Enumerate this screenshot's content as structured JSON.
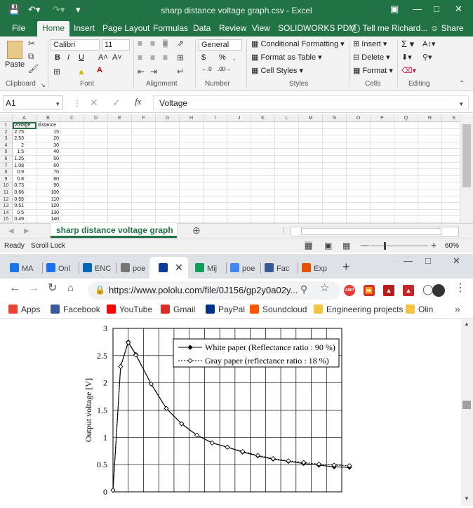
{
  "excel": {
    "window_title": "sharp distance voltage graph.csv - Excel",
    "tabs": [
      "File",
      "Home",
      "Insert",
      "Page Layout",
      "Formulas",
      "Data",
      "Review",
      "View",
      "SOLIDWORKS PDM"
    ],
    "tell_me": "Tell me",
    "user": "Richard...",
    "share": "Share",
    "ribbon": {
      "paste": "Paste",
      "font_name": "Calibri",
      "font_size": "11",
      "number_format": "General",
      "conditional_formatting": "Conditional Formatting",
      "format_as_table": "Format as Table",
      "cell_styles": "Cell Styles",
      "insert": "Insert",
      "delete": "Delete",
      "format": "Format",
      "groups": [
        "Clipboard",
        "Font",
        "Alignment",
        "Number",
        "Styles",
        "Cells",
        "Editing"
      ]
    },
    "name_box": "A1",
    "formula_value": "Voltage",
    "columns": [
      "A",
      "B",
      "C",
      "D",
      "E",
      "F",
      "G",
      "H",
      "I",
      "J",
      "K",
      "L",
      "M",
      "N",
      "O",
      "P",
      "Q",
      "R",
      "S"
    ],
    "rows": [
      [
        "Voltage",
        "distance"
      ],
      [
        "2.75",
        "15"
      ],
      [
        "2.53",
        "20"
      ],
      [
        "2",
        "30"
      ],
      [
        "1.5",
        "40"
      ],
      [
        "1.25",
        "50"
      ],
      [
        "1.08",
        "60"
      ],
      [
        "0.9",
        "70"
      ],
      [
        "0.8",
        "80"
      ],
      [
        "0.73",
        "90"
      ],
      [
        "0.66",
        "100"
      ],
      [
        "0.55",
        "110"
      ],
      [
        "0.51",
        "120"
      ],
      [
        "0.5",
        "130"
      ],
      [
        "0.49",
        "140"
      ]
    ],
    "sheet_tab": "sharp distance voltage graph",
    "status": {
      "ready": "Ready",
      "scroll_lock": "Scroll Lock",
      "zoom": "60%"
    }
  },
  "chrome": {
    "tabs": [
      {
        "label": "MA",
        "color": "#1a73e8"
      },
      {
        "label": "Onl",
        "color": "#1a73e8"
      },
      {
        "label": "ENC",
        "color": "#0067b8"
      },
      {
        "label": "poe",
        "color": "#777777"
      },
      {
        "label": "",
        "color": "#0b3d91"
      },
      {
        "label": "Mij",
        "color": "#0f9d58"
      },
      {
        "label": "poe",
        "color": "#4285f4"
      },
      {
        "label": "Fac",
        "color": "#3b5998"
      },
      {
        "label": "Exp",
        "color": "#e65100"
      }
    ],
    "url": "https://www.pololu.com/file/0J156/gp2y0a02y...",
    "bookmarks": [
      {
        "label": "Apps",
        "color": "#ea4335"
      },
      {
        "label": "Facebook",
        "color": "#3b5998"
      },
      {
        "label": "YouTube",
        "color": "#ff0000"
      },
      {
        "label": "Gmail",
        "color": "#d93025"
      },
      {
        "label": "PayPal",
        "color": "#003087"
      },
      {
        "label": "Soundcloud",
        "color": "#ff5500"
      },
      {
        "label": "Engineering projects",
        "color": "#f5c542"
      },
      {
        "label": "Olin",
        "color": "#f5c542"
      }
    ]
  },
  "chart_data": {
    "type": "line",
    "ylabel": "Output voltage [V]",
    "ylim": [
      0,
      3
    ],
    "yticks": [
      "0",
      "0.5",
      "1",
      "1.5",
      "2",
      "2.5",
      "3"
    ],
    "x": [
      0,
      1,
      2,
      3,
      5,
      7,
      9,
      11,
      13,
      15,
      17,
      19,
      21,
      23,
      25,
      27,
      29,
      31
    ],
    "xlim": [
      0,
      30
    ],
    "series": [
      {
        "name": "White paper (Reflectance ratio : 90 %)",
        "marker": "filled-diamond",
        "values": [
          0.03,
          2.3,
          2.75,
          2.52,
          1.98,
          1.53,
          1.25,
          1.04,
          0.9,
          0.82,
          0.73,
          0.66,
          0.6,
          0.56,
          0.52,
          0.49,
          0.46,
          0.45
        ]
      },
      {
        "name": "Gray paper (reflectance ratio : 18 %)",
        "marker": "open-diamond",
        "values": [
          0.03,
          2.3,
          2.74,
          2.51,
          1.98,
          1.53,
          1.25,
          1.04,
          0.9,
          0.82,
          0.74,
          0.67,
          0.61,
          0.57,
          0.54,
          0.51,
          0.49,
          0.48
        ]
      }
    ]
  }
}
